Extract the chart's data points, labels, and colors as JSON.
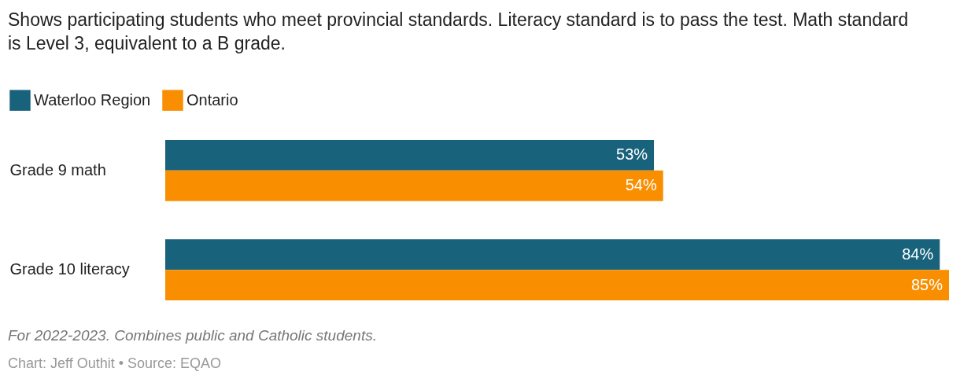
{
  "chart_data": {
    "type": "bar",
    "orientation": "horizontal",
    "title": "Shows participating students who meet provincial standards. Literacy standard is to pass the test. Math standard is Level 3, equivalent to a B grade.",
    "categories": [
      "Grade 9 math",
      "Grade 10 literacy"
    ],
    "series": [
      {
        "name": "Waterloo Region",
        "color": "#18627b",
        "values": [
          53,
          84
        ],
        "value_labels": [
          "53%",
          "84%"
        ]
      },
      {
        "name": "Ontario",
        "color": "#f98f00",
        "values": [
          54,
          85
        ],
        "value_labels": [
          "54%",
          "85%"
        ]
      }
    ],
    "legend": "top left",
    "annotations": [
      "For 2022-2023. Combines public and Catholic students.",
      "Chart: Jeff Outhit • Source: EQAO"
    ]
  }
}
